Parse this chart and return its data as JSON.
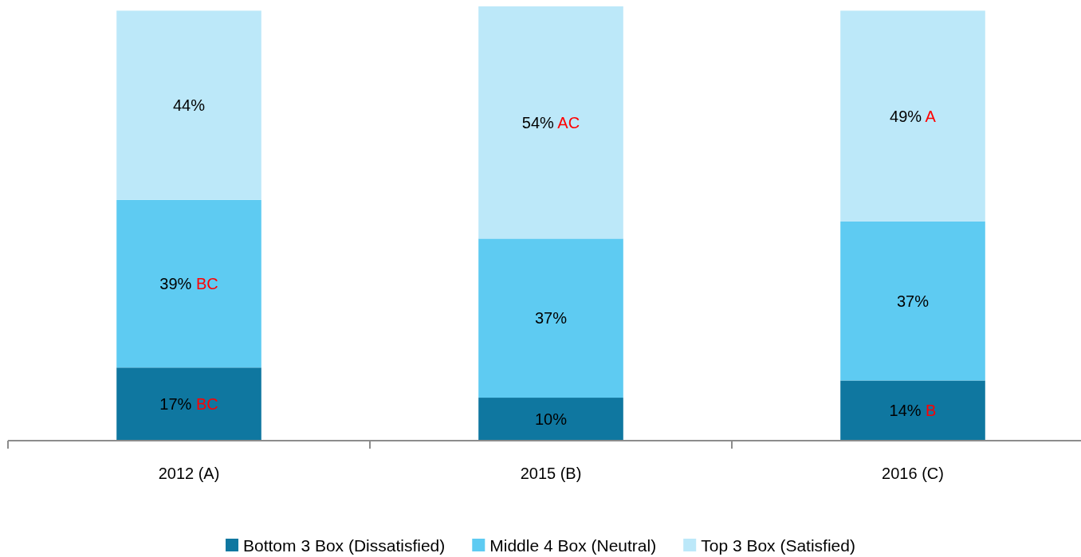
{
  "chart_data": {
    "type": "bar",
    "stacked": true,
    "categories": [
      "2012 (A)",
      "2015 (B)",
      "2016 (C)"
    ],
    "series": [
      {
        "name": "Bottom 3 Box (Dissatisfied)",
        "color": "#0f77a0",
        "values": [
          17,
          10,
          14
        ],
        "value_labels": [
          "17% BC",
          "10%",
          "14% B"
        ]
      },
      {
        "name": "Middle 4 Box (Neutral)",
        "color": "#5ecbf2",
        "values": [
          39,
          37,
          37
        ],
        "value_labels": [
          "39% BC",
          "37%",
          "37%"
        ]
      },
      {
        "name": "Top 3 Box (Satisfied)",
        "color": "#bce8f9",
        "values": [
          44,
          54,
          49
        ],
        "value_labels": [
          "44%",
          "54% AC",
          "49% A"
        ]
      }
    ],
    "ylim": [
      0,
      101
    ],
    "tick_labels": "x",
    "legend": "bottom"
  }
}
